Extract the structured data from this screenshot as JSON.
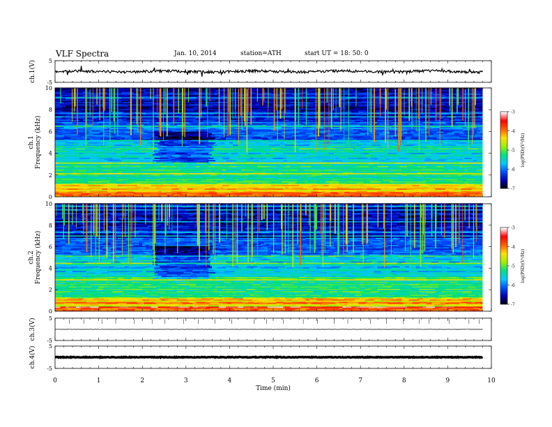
{
  "header": {
    "title": "VLF  Spectra",
    "date": "Jan. 10, 2014",
    "station": "station=ATH",
    "start": "start  UT =   18: 50: 0"
  },
  "chart_data": {
    "type": "heatmap",
    "x_axis": {
      "label": "Time  (min)",
      "ticks": [
        "0",
        "1",
        "2",
        "3",
        "4",
        "5",
        "6",
        "7",
        "8",
        "9",
        "10"
      ],
      "range": [
        0,
        10
      ]
    },
    "panels": [
      {
        "name": "ch.1(V)",
        "type": "line",
        "ylabel": "ch.1(V)",
        "ylim": [
          -5,
          5
        ],
        "ticks": [
          "5",
          "-5"
        ],
        "baseline": 0,
        "noise_amplitude": 0.6
      },
      {
        "name": "ch.1 spectrogram",
        "type": "heatmap",
        "ylabel": "ch.1\nFrequency  (kHz)",
        "ylim": [
          0,
          10
        ],
        "ticks": [
          "0",
          "2",
          "4",
          "6",
          "8",
          "10"
        ],
        "colorbar": {
          "label": "log(PSD)(V²/Hz)",
          "range": [
            -7,
            -3
          ],
          "ticks": [
            "-3",
            "-4",
            "-5",
            "-6",
            "-7"
          ]
        },
        "quiet_interval_min": [
          2.2,
          3.5
        ]
      },
      {
        "name": "ch.2 spectrogram",
        "type": "heatmap",
        "ylabel": "ch.2\nFrequency  (kHz)",
        "ylim": [
          0,
          10
        ],
        "ticks": [
          "0",
          "2",
          "4",
          "6",
          "8",
          "10"
        ],
        "colorbar": {
          "label": "log(PSD)(V²/Hz)",
          "range": [
            -7,
            -3
          ],
          "ticks": [
            "-3",
            "-4",
            "-5",
            "-6",
            "-7"
          ]
        },
        "quiet_interval_min": [
          2.2,
          3.5
        ]
      },
      {
        "name": "ch.3(V)",
        "type": "line",
        "ylabel": "ch.3(V)",
        "ylim": [
          -5,
          5
        ],
        "ticks": [
          "5",
          "-5"
        ],
        "baseline": 0,
        "noise_amplitude": 0.05
      },
      {
        "name": "ch.4(V)",
        "type": "line",
        "ylabel": "ch.4(V)",
        "ylim": [
          -5,
          5
        ],
        "ticks": [
          "5",
          "-5"
        ],
        "baseline": 0,
        "noise_amplitude": 0.15
      }
    ],
    "data_end_min": 9.8,
    "colors": {
      "colormap": [
        "#000000",
        "#0000b0",
        "#0050ff",
        "#00c8ff",
        "#00e080",
        "#a0f000",
        "#ffe000",
        "#ff6000",
        "#ff0000",
        "#ffffff"
      ]
    }
  }
}
